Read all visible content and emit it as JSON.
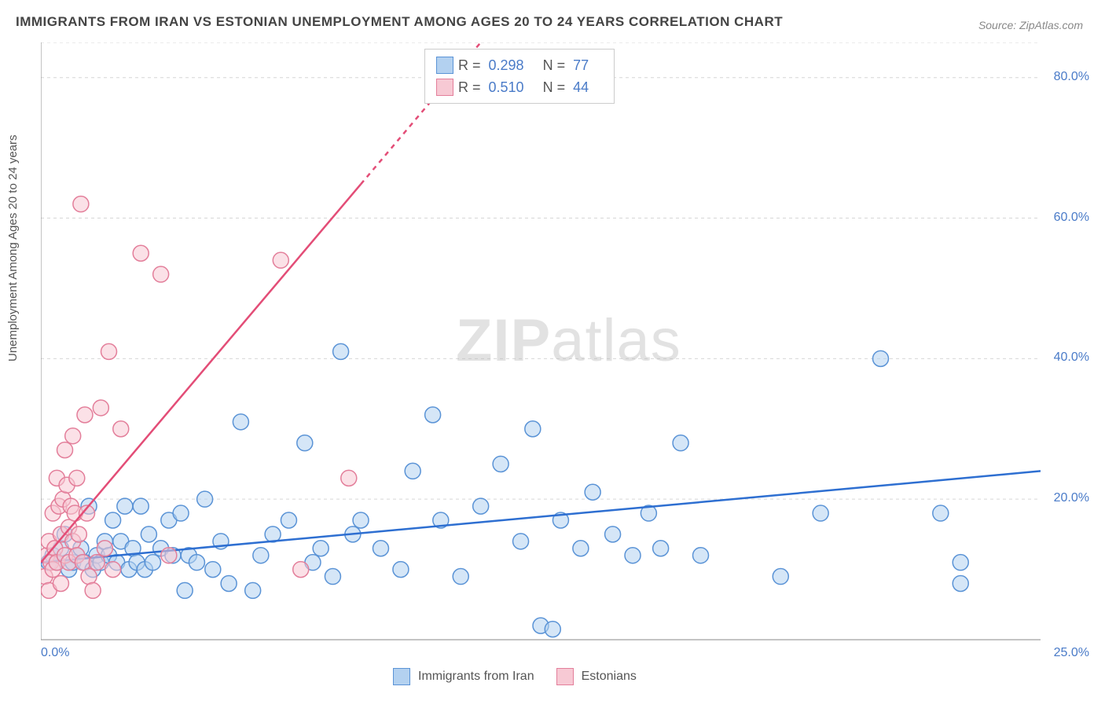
{
  "chart": {
    "type": "scatter",
    "title": "IMMIGRANTS FROM IRAN VS ESTONIAN UNEMPLOYMENT AMONG AGES 20 TO 24 YEARS CORRELATION CHART",
    "source": "Source: ZipAtlas.com",
    "y_axis_label": "Unemployment Among Ages 20 to 24 years",
    "watermark": {
      "bold": "ZIP",
      "rest": "atlas"
    },
    "xlim": [
      0,
      25
    ],
    "ylim": [
      0,
      85
    ],
    "x_ticks": [
      {
        "value": 0,
        "label": "0.0%"
      },
      {
        "value": 25,
        "label": "25.0%"
      }
    ],
    "y_ticks": [
      {
        "value": 20,
        "label": "20.0%"
      },
      {
        "value": 40,
        "label": "40.0%"
      },
      {
        "value": 60,
        "label": "60.0%"
      },
      {
        "value": 80,
        "label": "80.0%"
      }
    ],
    "grid_y": [
      20,
      40,
      60,
      80,
      85
    ],
    "background_color": "#ffffff",
    "grid_color": "#bbbbbb",
    "axis_color": "#888888",
    "tick_color": "#4a7bc8",
    "tick_fontsize": 16,
    "title_fontsize": 17,
    "label_fontsize": 15,
    "marker_radius": 10,
    "marker_opacity": 0.55,
    "marker_stroke_width": 1.5,
    "trendline_width": 2.5,
    "series": [
      {
        "name": "Immigrants from Iran",
        "color_fill": "#b3d1f0",
        "color_stroke": "#5a93d6",
        "trend_color": "#2e6fd1",
        "trend": {
          "x1": 0,
          "y1": 11,
          "x2": 25,
          "y2": 24
        },
        "stats": {
          "R": "0.298",
          "N": "77"
        },
        "points": [
          [
            0.2,
            11
          ],
          [
            0.3,
            12
          ],
          [
            0.4,
            11
          ],
          [
            0.5,
            13
          ],
          [
            0.6,
            15
          ],
          [
            0.7,
            10
          ],
          [
            0.8,
            11
          ],
          [
            0.9,
            12
          ],
          [
            1.0,
            13
          ],
          [
            1.1,
            11
          ],
          [
            1.2,
            19
          ],
          [
            1.3,
            10
          ],
          [
            1.4,
            12
          ],
          [
            1.5,
            11
          ],
          [
            1.6,
            14
          ],
          [
            1.7,
            12
          ],
          [
            1.8,
            17
          ],
          [
            1.9,
            11
          ],
          [
            2.0,
            14
          ],
          [
            2.1,
            19
          ],
          [
            2.2,
            10
          ],
          [
            2.3,
            13
          ],
          [
            2.4,
            11
          ],
          [
            2.5,
            19
          ],
          [
            2.6,
            10
          ],
          [
            2.7,
            15
          ],
          [
            2.8,
            11
          ],
          [
            3.0,
            13
          ],
          [
            3.2,
            17
          ],
          [
            3.3,
            12
          ],
          [
            3.5,
            18
          ],
          [
            3.6,
            7
          ],
          [
            3.7,
            12
          ],
          [
            3.9,
            11
          ],
          [
            4.1,
            20
          ],
          [
            4.3,
            10
          ],
          [
            4.5,
            14
          ],
          [
            4.7,
            8
          ],
          [
            5.0,
            31
          ],
          [
            5.3,
            7
          ],
          [
            5.5,
            12
          ],
          [
            5.8,
            15
          ],
          [
            6.2,
            17
          ],
          [
            6.6,
            28
          ],
          [
            6.8,
            11
          ],
          [
            7.0,
            13
          ],
          [
            7.3,
            9
          ],
          [
            7.5,
            41
          ],
          [
            7.8,
            15
          ],
          [
            8.0,
            17
          ],
          [
            8.5,
            13
          ],
          [
            9.0,
            10
          ],
          [
            9.3,
            24
          ],
          [
            9.8,
            32
          ],
          [
            10.0,
            17
          ],
          [
            10.5,
            9
          ],
          [
            11.0,
            19
          ],
          [
            11.5,
            25
          ],
          [
            12.0,
            14
          ],
          [
            12.3,
            30
          ],
          [
            12.5,
            2
          ],
          [
            12.8,
            1.5
          ],
          [
            13.0,
            17
          ],
          [
            13.5,
            13
          ],
          [
            13.8,
            21
          ],
          [
            14.3,
            15
          ],
          [
            14.8,
            12
          ],
          [
            15.2,
            18
          ],
          [
            15.5,
            13
          ],
          [
            16.0,
            28
          ],
          [
            16.5,
            12
          ],
          [
            18.5,
            9
          ],
          [
            19.5,
            18
          ],
          [
            21.0,
            40
          ],
          [
            22.5,
            18
          ],
          [
            23.0,
            8
          ],
          [
            23.0,
            11
          ]
        ]
      },
      {
        "name": "Estonians",
        "color_fill": "#f7c9d4",
        "color_stroke": "#e37e9a",
        "trend_color": "#e34d77",
        "trend": {
          "x1": 0,
          "y1": 11,
          "x2": 11,
          "y2": 85
        },
        "trend_dash_from_x": 8,
        "stats": {
          "R": "0.510",
          "N": "44"
        },
        "points": [
          [
            0.1,
            9
          ],
          [
            0.15,
            12
          ],
          [
            0.2,
            7
          ],
          [
            0.2,
            14
          ],
          [
            0.25,
            11
          ],
          [
            0.3,
            18
          ],
          [
            0.3,
            10
          ],
          [
            0.35,
            13
          ],
          [
            0.4,
            23
          ],
          [
            0.4,
            11
          ],
          [
            0.45,
            19
          ],
          [
            0.5,
            15
          ],
          [
            0.5,
            8
          ],
          [
            0.55,
            20
          ],
          [
            0.6,
            27
          ],
          [
            0.6,
            12
          ],
          [
            0.65,
            22
          ],
          [
            0.7,
            16
          ],
          [
            0.7,
            11
          ],
          [
            0.75,
            19
          ],
          [
            0.8,
            29
          ],
          [
            0.8,
            14
          ],
          [
            0.85,
            18
          ],
          [
            0.9,
            12
          ],
          [
            0.9,
            23
          ],
          [
            0.95,
            15
          ],
          [
            1.0,
            62
          ],
          [
            1.05,
            11
          ],
          [
            1.1,
            32
          ],
          [
            1.15,
            18
          ],
          [
            1.2,
            9
          ],
          [
            1.3,
            7
          ],
          [
            1.4,
            11
          ],
          [
            1.5,
            33
          ],
          [
            1.6,
            13
          ],
          [
            1.7,
            41
          ],
          [
            1.8,
            10
          ],
          [
            2.0,
            30
          ],
          [
            2.5,
            55
          ],
          [
            3.0,
            52
          ],
          [
            3.2,
            12
          ],
          [
            6.0,
            54
          ],
          [
            6.5,
            10
          ],
          [
            7.7,
            23
          ]
        ]
      }
    ],
    "top_legend": {
      "rows": [
        {
          "swatch_fill": "#b3d1f0",
          "swatch_stroke": "#5a93d6",
          "R_label": "R =",
          "R_value": "0.298",
          "N_label": "N =",
          "N_value": "77"
        },
        {
          "swatch_fill": "#f7c9d4",
          "swatch_stroke": "#e37e9a",
          "R_label": "R =",
          "R_value": "0.510",
          "N_label": "N =",
          "N_value": "44"
        }
      ]
    },
    "bottom_legend": {
      "items": [
        {
          "swatch_fill": "#b3d1f0",
          "swatch_stroke": "#5a93d6",
          "label": "Immigrants from Iran"
        },
        {
          "swatch_fill": "#f7c9d4",
          "swatch_stroke": "#e37e9a",
          "label": "Estonians"
        }
      ]
    }
  }
}
